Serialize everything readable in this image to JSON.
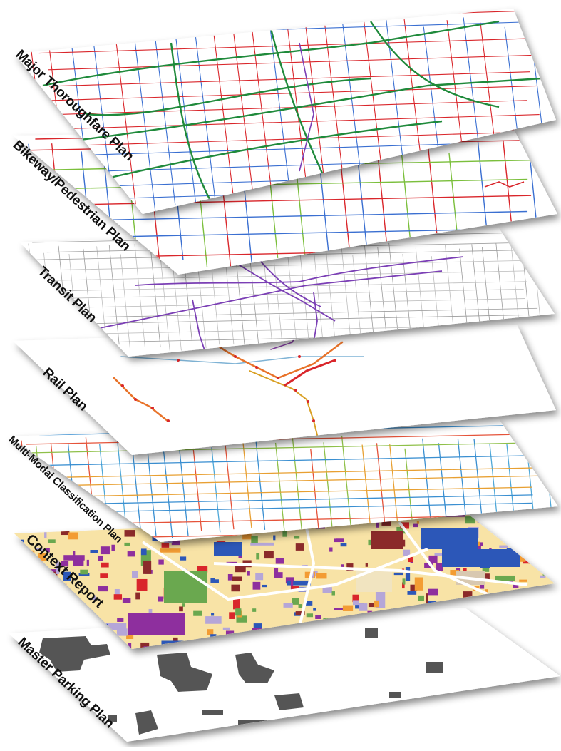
{
  "layers": [
    {
      "id": "major",
      "label": "Major Thoroughfare Plan"
    },
    {
      "id": "bike",
      "label": "Bikeway/Pedestrian Plan"
    },
    {
      "id": "transit",
      "label": "Transit Plan"
    },
    {
      "id": "rail",
      "label": "Rail Plan"
    },
    {
      "id": "mm",
      "label": "Multi-Modal Classification Plan"
    },
    {
      "id": "context",
      "label": "Context Report"
    },
    {
      "id": "parking",
      "label": "Master Parking Plan"
    }
  ],
  "colors": {
    "sheet": "#ffffff",
    "road_red": "#d9262b",
    "road_green": "#1f8a3b",
    "road_blue": "#3a6fd1",
    "transit_gray": "#9a9a9a",
    "transit_purple": "#7b3fb5",
    "rail_orange": "#e8732a",
    "landuse_yellow": "#f8e3a6",
    "landuse_purple": "#8e2f9e",
    "landuse_blue": "#2c57b8",
    "landuse_green": "#6aa84f",
    "parking_gray": "#555555"
  }
}
